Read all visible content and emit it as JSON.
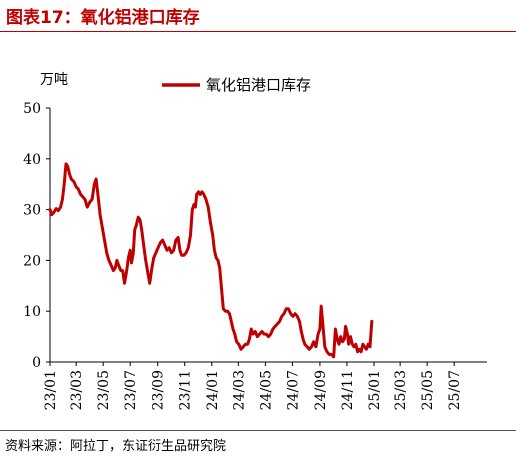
{
  "figure": {
    "title": "图表17：氧化铝港口库存",
    "source": "资料来源：阿拉丁，东证衍生品研究院"
  },
  "colors": {
    "accent": "#c00000",
    "series": "#c00000"
  },
  "chart_data": {
    "type": "line",
    "title": "",
    "xlabel": "",
    "ylabel": "万吨",
    "ylim": [
      0,
      50
    ],
    "yticks": [
      0,
      10,
      20,
      30,
      40,
      50
    ],
    "xlim": [
      "2023-01-01",
      "2025-09-13"
    ],
    "xticks": [
      {
        "date": "2023-01-01",
        "label": "23/01"
      },
      {
        "date": "2023-03-01",
        "label": "23/03"
      },
      {
        "date": "2023-05-01",
        "label": "23/05"
      },
      {
        "date": "2023-07-01",
        "label": "23/07"
      },
      {
        "date": "2023-09-01",
        "label": "23/09"
      },
      {
        "date": "2023-11-01",
        "label": "23/11"
      },
      {
        "date": "2024-01-01",
        "label": "24/01"
      },
      {
        "date": "2024-03-01",
        "label": "24/03"
      },
      {
        "date": "2024-05-01",
        "label": "24/05"
      },
      {
        "date": "2024-07-01",
        "label": "24/07"
      },
      {
        "date": "2024-09-01",
        "label": "24/09"
      },
      {
        "date": "2024-11-01",
        "label": "24/11"
      },
      {
        "date": "2025-01-01",
        "label": "25/01"
      },
      {
        "date": "2025-03-01",
        "label": "25/03"
      },
      {
        "date": "2025-05-01",
        "label": "25/05"
      },
      {
        "date": "2025-07-01",
        "label": "25/07"
      }
    ],
    "grid": false,
    "legend_position": "top",
    "series": [
      {
        "name": "氧化铝港口库存",
        "points": [
          [
            "2023-01-01",
            30.0
          ],
          [
            "2023-01-05",
            29.0
          ],
          [
            "2023-01-10",
            29.5
          ],
          [
            "2023-01-15",
            30.2
          ],
          [
            "2023-01-20",
            29.8
          ],
          [
            "2023-01-25",
            30.5
          ],
          [
            "2023-01-29",
            32.0
          ],
          [
            "2023-02-02",
            35.0
          ],
          [
            "2023-02-06",
            39.0
          ],
          [
            "2023-02-10",
            38.5
          ],
          [
            "2023-02-14",
            37.0
          ],
          [
            "2023-02-18",
            36.0
          ],
          [
            "2023-02-24",
            35.5
          ],
          [
            "2023-03-01",
            34.5
          ],
          [
            "2023-03-06",
            34.0
          ],
          [
            "2023-03-11",
            33.0
          ],
          [
            "2023-03-16",
            32.5
          ],
          [
            "2023-03-21",
            32.0
          ],
          [
            "2023-03-26",
            30.5
          ],
          [
            "2023-04-01",
            31.5
          ],
          [
            "2023-04-06",
            32.0
          ],
          [
            "2023-04-11",
            35.0
          ],
          [
            "2023-04-15",
            36.0
          ],
          [
            "2023-04-19",
            33.0
          ],
          [
            "2023-04-24",
            29.0
          ],
          [
            "2023-04-29",
            26.5
          ],
          [
            "2023-05-04",
            24.0
          ],
          [
            "2023-05-09",
            21.5
          ],
          [
            "2023-05-14",
            20.0
          ],
          [
            "2023-05-19",
            19.0
          ],
          [
            "2023-05-24",
            18.0
          ],
          [
            "2023-05-28",
            18.5
          ],
          [
            "2023-06-01",
            20.0
          ],
          [
            "2023-06-05",
            19.0
          ],
          [
            "2023-06-10",
            18.0
          ],
          [
            "2023-06-14",
            18.0
          ],
          [
            "2023-06-18",
            15.5
          ],
          [
            "2023-06-23",
            18.0
          ],
          [
            "2023-06-27",
            20.5
          ],
          [
            "2023-07-01",
            22.0
          ],
          [
            "2023-07-04",
            19.5
          ],
          [
            "2023-07-08",
            21.5
          ],
          [
            "2023-07-11",
            26.0
          ],
          [
            "2023-07-15",
            27.0
          ],
          [
            "2023-07-19",
            28.5
          ],
          [
            "2023-07-23",
            28.0
          ],
          [
            "2023-07-27",
            26.0
          ],
          [
            "2023-08-01",
            22.5
          ],
          [
            "2023-08-05",
            20.0
          ],
          [
            "2023-08-10",
            17.5
          ],
          [
            "2023-08-14",
            15.5
          ],
          [
            "2023-08-19",
            18.5
          ],
          [
            "2023-08-23",
            20.5
          ],
          [
            "2023-08-28",
            21.5
          ],
          [
            "2023-09-02",
            22.5
          ],
          [
            "2023-09-07",
            23.5
          ],
          [
            "2023-09-12",
            24.0
          ],
          [
            "2023-09-17",
            23.0
          ],
          [
            "2023-09-22",
            22.0
          ],
          [
            "2023-09-27",
            22.5
          ],
          [
            "2023-10-02",
            21.5
          ],
          [
            "2023-10-07",
            22.0
          ],
          [
            "2023-10-12",
            24.0
          ],
          [
            "2023-10-17",
            24.5
          ],
          [
            "2023-10-21",
            22.0
          ],
          [
            "2023-10-25",
            21.0
          ],
          [
            "2023-10-30",
            21.0
          ],
          [
            "2023-11-04",
            21.5
          ],
          [
            "2023-11-09",
            22.5
          ],
          [
            "2023-11-14",
            25.0
          ],
          [
            "2023-11-18",
            30.0
          ],
          [
            "2023-11-22",
            31.0
          ],
          [
            "2023-11-25",
            30.5
          ],
          [
            "2023-11-28",
            33.0
          ],
          [
            "2023-12-02",
            33.5
          ],
          [
            "2023-12-06",
            33.0
          ],
          [
            "2023-12-10",
            33.5
          ],
          [
            "2023-12-14",
            33.0
          ],
          [
            "2023-12-19",
            32.0
          ],
          [
            "2023-12-24",
            30.5
          ],
          [
            "2023-12-29",
            27.5
          ],
          [
            "2024-01-03",
            25.0
          ],
          [
            "2024-01-07",
            22.0
          ],
          [
            "2024-01-11",
            20.5
          ],
          [
            "2024-01-15",
            20.0
          ],
          [
            "2024-01-19",
            18.5
          ],
          [
            "2024-01-23",
            14.5
          ],
          [
            "2024-01-27",
            10.5
          ],
          [
            "2024-02-01",
            10.0
          ],
          [
            "2024-02-06",
            10.0
          ],
          [
            "2024-02-10",
            9.5
          ],
          [
            "2024-02-14",
            8.0
          ],
          [
            "2024-02-18",
            6.5
          ],
          [
            "2024-02-22",
            5.5
          ],
          [
            "2024-02-26",
            4.0
          ],
          [
            "2024-03-02",
            3.5
          ],
          [
            "2024-03-07",
            2.5
          ],
          [
            "2024-03-12",
            3.0
          ],
          [
            "2024-03-17",
            3.5
          ],
          [
            "2024-03-22",
            3.5
          ],
          [
            "2024-03-26",
            4.5
          ],
          [
            "2024-03-30",
            6.5
          ],
          [
            "2024-04-03",
            5.5
          ],
          [
            "2024-04-08",
            6.0
          ],
          [
            "2024-04-13",
            5.0
          ],
          [
            "2024-04-18",
            5.5
          ],
          [
            "2024-04-23",
            6.0
          ],
          [
            "2024-04-28",
            5.5
          ],
          [
            "2024-05-03",
            5.5
          ],
          [
            "2024-05-08",
            5.0
          ],
          [
            "2024-05-13",
            5.5
          ],
          [
            "2024-05-18",
            6.5
          ],
          [
            "2024-05-23",
            7.0
          ],
          [
            "2024-05-28",
            7.5
          ],
          [
            "2024-06-02",
            8.0
          ],
          [
            "2024-06-07",
            9.0
          ],
          [
            "2024-06-12",
            9.5
          ],
          [
            "2024-06-17",
            10.5
          ],
          [
            "2024-06-22",
            10.5
          ],
          [
            "2024-06-27",
            9.5
          ],
          [
            "2024-07-02",
            9.0
          ],
          [
            "2024-07-07",
            9.5
          ],
          [
            "2024-07-12",
            9.0
          ],
          [
            "2024-07-17",
            8.0
          ],
          [
            "2024-07-21",
            6.0
          ],
          [
            "2024-07-25",
            4.5
          ],
          [
            "2024-07-29",
            3.5
          ],
          [
            "2024-08-03",
            3.0
          ],
          [
            "2024-08-08",
            2.5
          ],
          [
            "2024-08-13",
            3.0
          ],
          [
            "2024-08-18",
            4.0
          ],
          [
            "2024-08-23",
            3.0
          ],
          [
            "2024-08-28",
            5.5
          ],
          [
            "2024-09-01",
            6.5
          ],
          [
            "2024-09-04",
            11.0
          ],
          [
            "2024-09-08",
            7.0
          ],
          [
            "2024-09-12",
            3.0
          ],
          [
            "2024-09-17",
            2.0
          ],
          [
            "2024-09-22",
            1.5
          ],
          [
            "2024-09-27",
            1.5
          ],
          [
            "2024-10-02",
            1.0
          ],
          [
            "2024-10-06",
            6.5
          ],
          [
            "2024-10-10",
            4.5
          ],
          [
            "2024-10-14",
            3.5
          ],
          [
            "2024-10-18",
            5.0
          ],
          [
            "2024-10-22",
            4.0
          ],
          [
            "2024-10-26",
            4.5
          ],
          [
            "2024-10-29",
            7.0
          ],
          [
            "2024-11-02",
            5.5
          ],
          [
            "2024-11-05",
            3.5
          ],
          [
            "2024-11-09",
            5.0
          ],
          [
            "2024-11-13",
            3.5
          ],
          [
            "2024-11-17",
            3.0
          ],
          [
            "2024-11-21",
            3.5
          ],
          [
            "2024-11-25",
            2.0
          ],
          [
            "2024-11-29",
            2.5
          ],
          [
            "2024-12-03",
            2.0
          ],
          [
            "2024-12-07",
            3.5
          ],
          [
            "2024-12-11",
            3.0
          ],
          [
            "2024-12-15",
            2.5
          ],
          [
            "2024-12-19",
            3.5
          ],
          [
            "2024-12-23",
            3.0
          ],
          [
            "2024-12-27",
            8.0
          ]
        ]
      }
    ]
  }
}
